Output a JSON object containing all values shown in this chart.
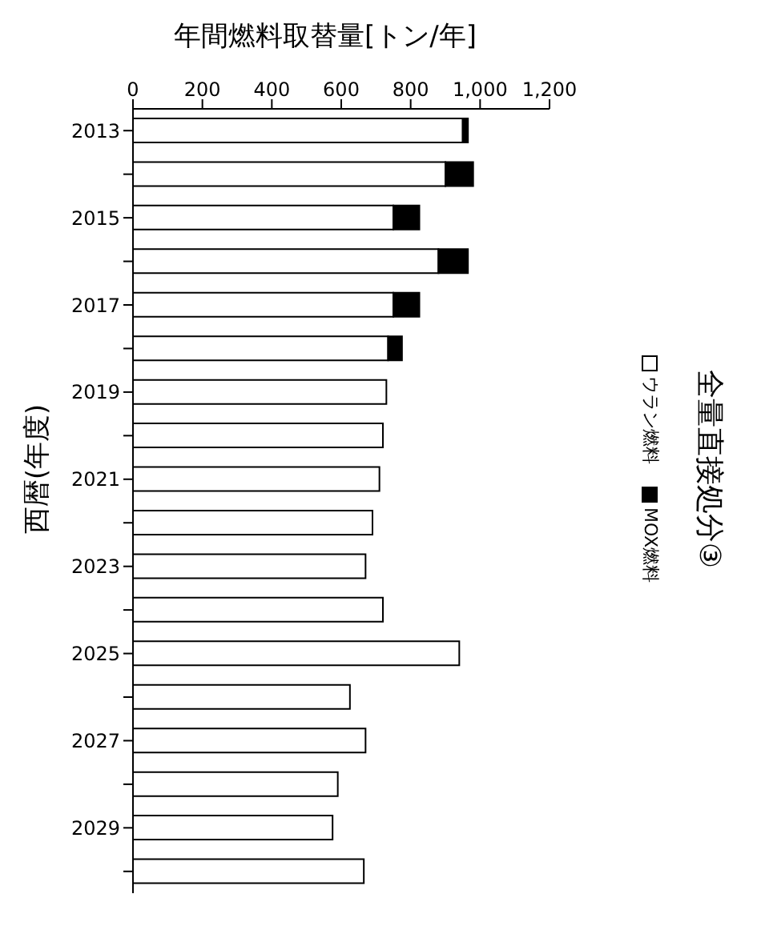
{
  "chart_data": {
    "type": "bar",
    "orientation": "horizontal",
    "title": "全量直接処分③",
    "xlabel": "年間燃料取替量[トン/年]",
    "ylabel": "西暦(年度)",
    "categories": [
      "2013",
      null,
      "2015",
      null,
      "2017",
      null,
      "2019",
      null,
      "2021",
      null,
      "2023",
      null,
      "2025",
      null,
      "2027",
      null,
      "2029",
      null
    ],
    "stacked": true,
    "series": [
      {
        "name": "ウラン燃料",
        "color": "#ffffff",
        "values": [
          950,
          900,
          750,
          880,
          750,
          735,
          730,
          720,
          710,
          690,
          670,
          720,
          940,
          625,
          670,
          590,
          575,
          665
        ]
      },
      {
        "name": "MOX燃料",
        "color": "#000000",
        "values": [
          15,
          80,
          75,
          85,
          75,
          40,
          0,
          0,
          0,
          0,
          0,
          0,
          0,
          0,
          0,
          0,
          0,
          0
        ]
      }
    ],
    "xlim": [
      0,
      1200
    ],
    "xticks": [
      0,
      200,
      400,
      600,
      800,
      {
        "value": 1000,
        "label": "1,000"
      },
      {
        "value": 1200,
        "label": "1,200"
      }
    ],
    "legend": "right"
  }
}
